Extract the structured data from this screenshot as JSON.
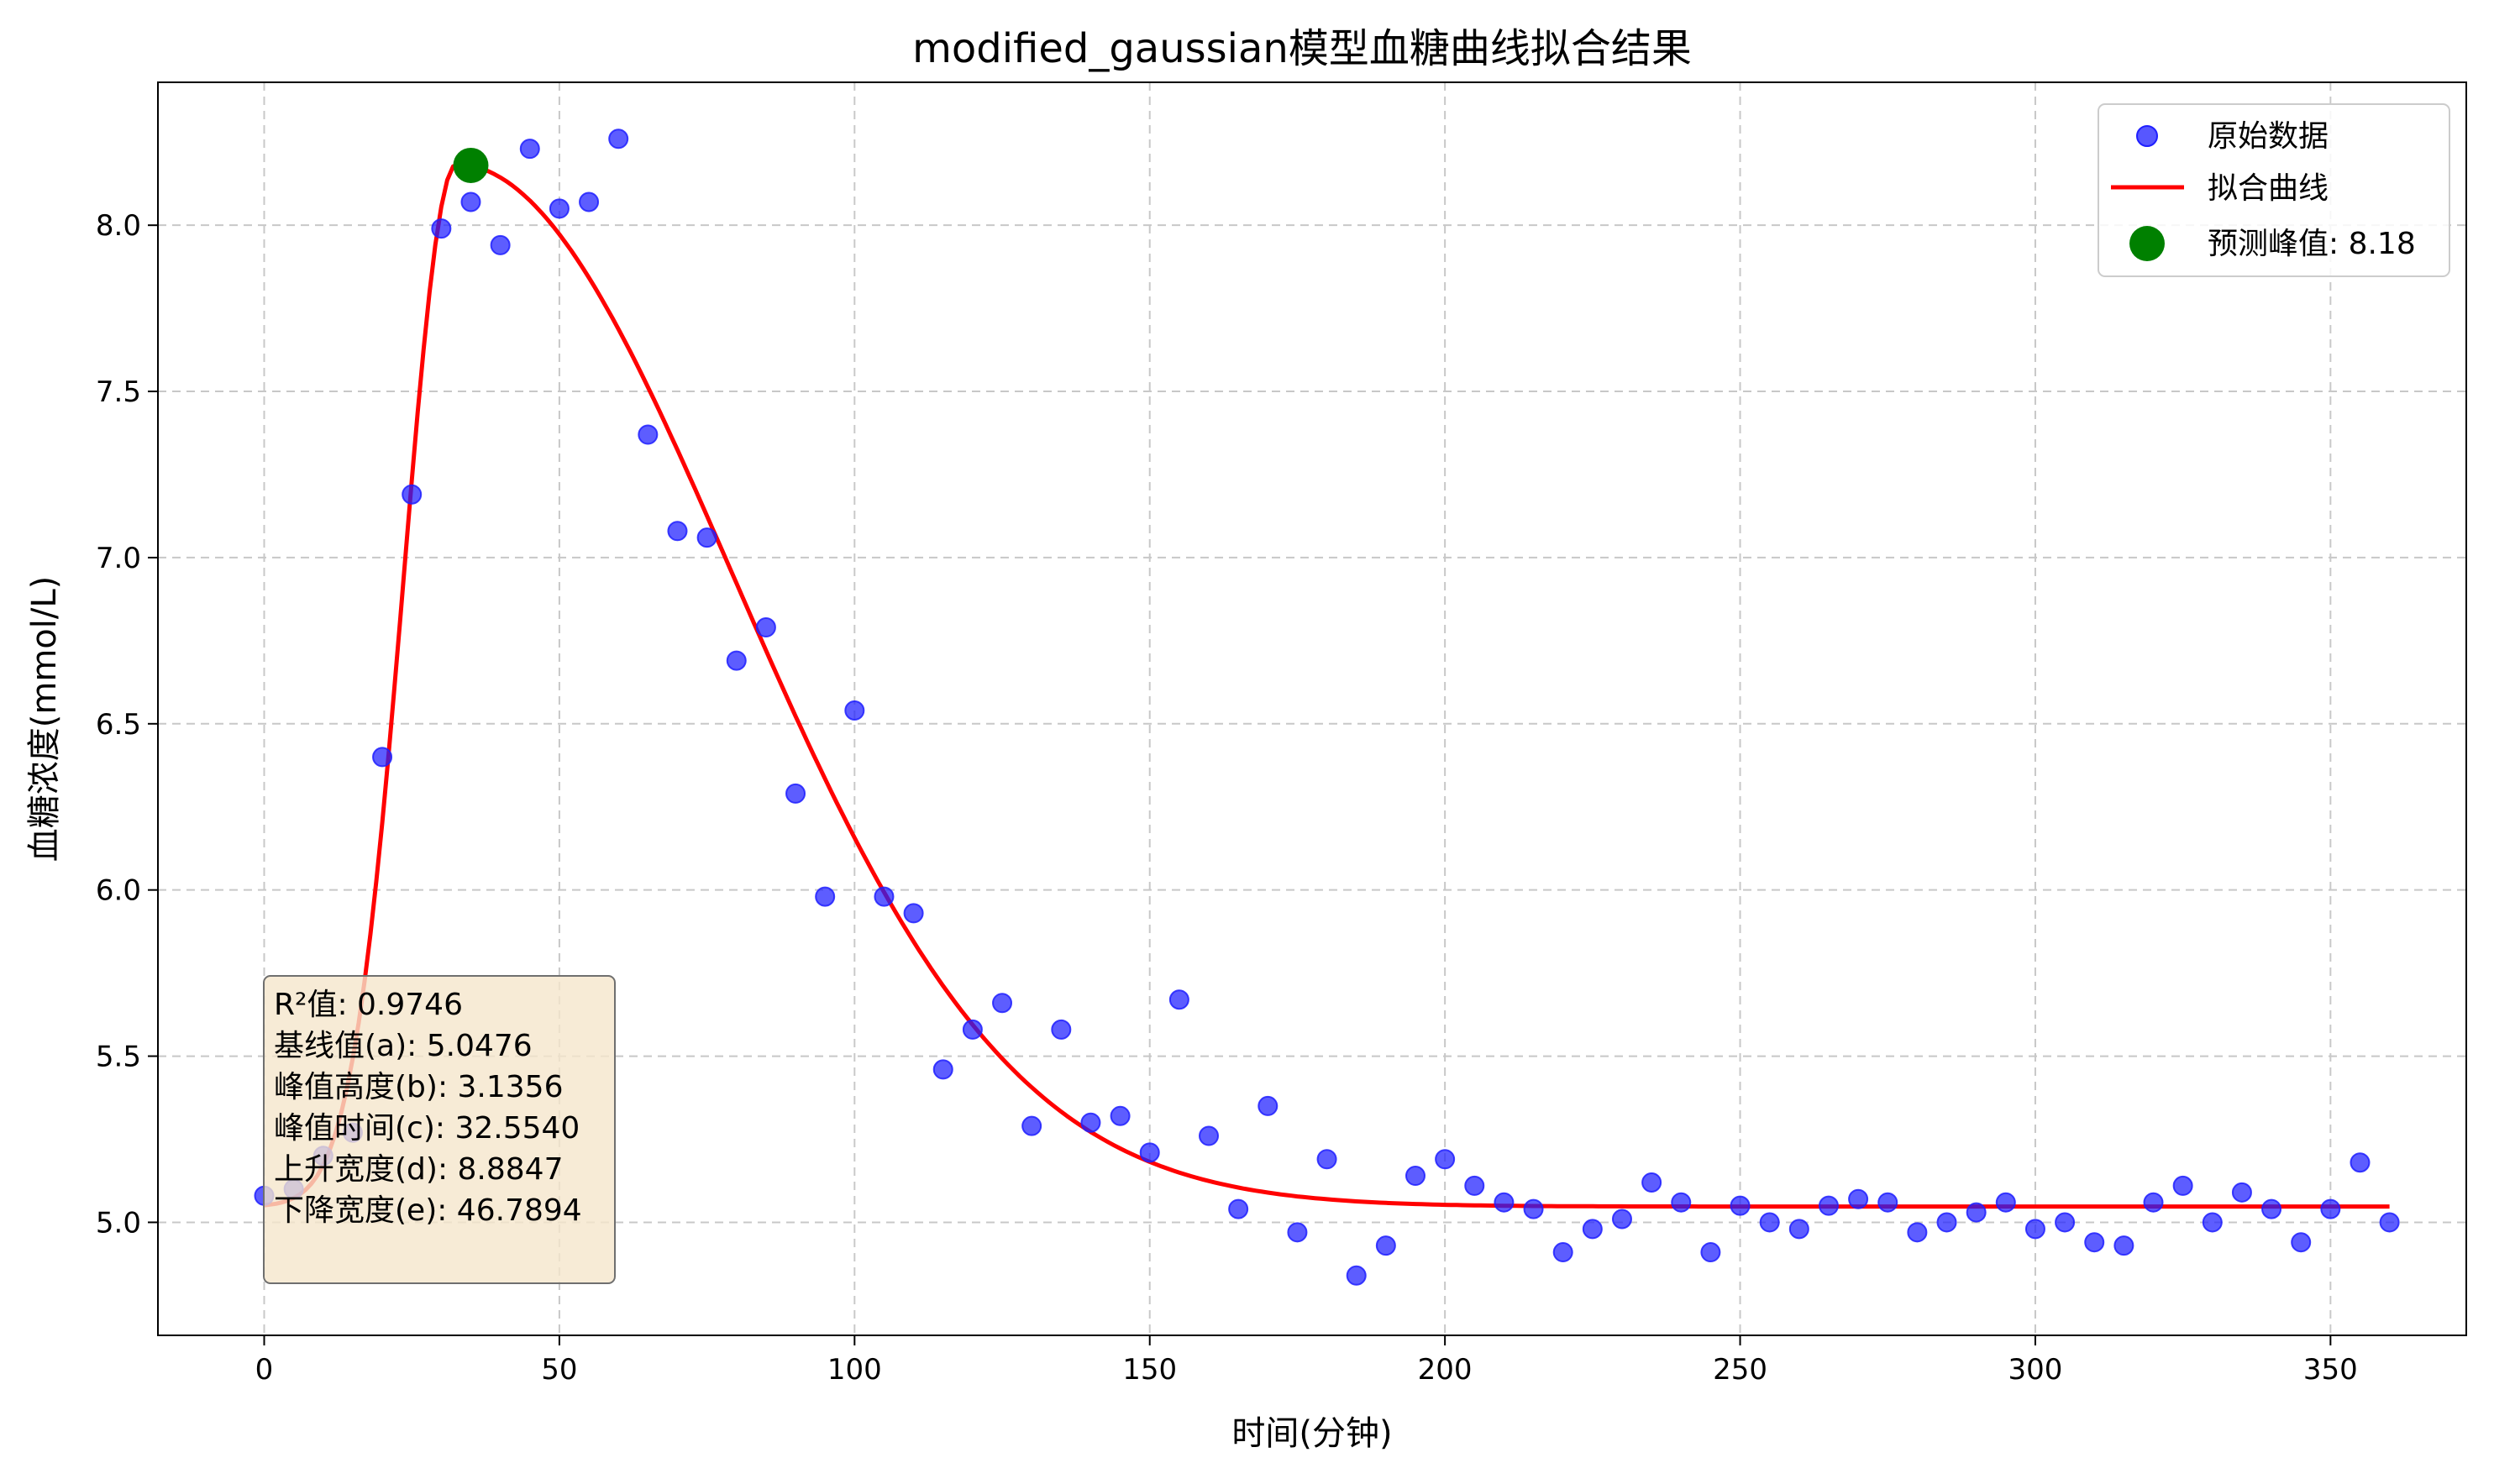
{
  "chart_data": {
    "type": "scatter",
    "title": "modified_gaussian模型血糖曲线拟合结果",
    "xlabel": "时间(分钟)",
    "ylabel": "血糖浓度(mmol/L)",
    "xlim": [
      -18,
      373
    ],
    "ylim": [
      4.66,
      8.43
    ],
    "xticks": [
      0,
      50,
      100,
      150,
      200,
      250,
      300,
      350
    ],
    "yticks": [
      5.0,
      5.5,
      6.0,
      6.5,
      7.0,
      7.5,
      8.0
    ],
    "grid": true,
    "legend_position": "top-right",
    "colors": {
      "points": "#1f1fff",
      "curve": "#ff0000",
      "peak": "#008000",
      "stats_box_fill": "#f5e6cc",
      "stats_box_edge": "#7f7f7f",
      "grid": "#c8c8c8"
    },
    "series": [
      {
        "name": "原始数据",
        "kind": "scatter",
        "x": [
          0,
          5,
          10,
          15,
          20,
          25,
          30,
          35,
          40,
          45,
          50,
          55,
          60,
          65,
          70,
          75,
          80,
          85,
          90,
          95,
          100,
          105,
          110,
          115,
          120,
          125,
          130,
          135,
          140,
          145,
          150,
          155,
          160,
          165,
          170,
          175,
          180,
          185,
          190,
          195,
          200,
          205,
          210,
          215,
          220,
          225,
          230,
          235,
          240,
          245,
          250,
          255,
          260,
          265,
          270,
          275,
          280,
          285,
          290,
          295,
          300,
          305,
          310,
          315,
          320,
          325,
          330,
          335,
          340,
          345,
          350,
          355,
          360
        ],
        "y": [
          5.08,
          5.1,
          5.2,
          5.27,
          6.4,
          7.19,
          7.99,
          8.07,
          7.94,
          8.23,
          8.05,
          8.07,
          8.26,
          7.37,
          7.08,
          7.06,
          6.69,
          6.79,
          6.29,
          5.98,
          6.54,
          5.98,
          5.93,
          5.46,
          5.58,
          5.66,
          5.29,
          5.58,
          5.3,
          5.32,
          5.21,
          5.67,
          5.26,
          5.04,
          5.35,
          4.97,
          5.19,
          4.84,
          4.93,
          5.14,
          5.19,
          5.11,
          5.06,
          5.04,
          4.91,
          4.98,
          5.01,
          5.12,
          5.06,
          4.91,
          5.05,
          5.0,
          4.98,
          5.05,
          5.07,
          5.06,
          4.97,
          5.0,
          5.03,
          5.06,
          4.98,
          5.0,
          4.94,
          4.93,
          5.06,
          5.11,
          5.0,
          5.09,
          5.04,
          4.94,
          5.04,
          5.18,
          5.0
        ]
      },
      {
        "name": "拟合曲线",
        "kind": "line",
        "model": "modified_gaussian",
        "params": {
          "a": 5.0476,
          "b": 3.1356,
          "c": 32.554,
          "d": 8.8847,
          "e": 46.7894
        },
        "x_range": [
          0,
          360
        ]
      },
      {
        "name": "预测峰值: 8.18",
        "kind": "marker",
        "x": 35,
        "y": 8.18
      }
    ],
    "stats_box": [
      "R²值: 0.9746",
      "基线值(a): 5.0476",
      "峰值高度(b): 3.1356",
      "峰值时间(c): 32.5540",
      "上升宽度(d): 8.8847",
      "下降宽度(e): 46.7894"
    ]
  }
}
